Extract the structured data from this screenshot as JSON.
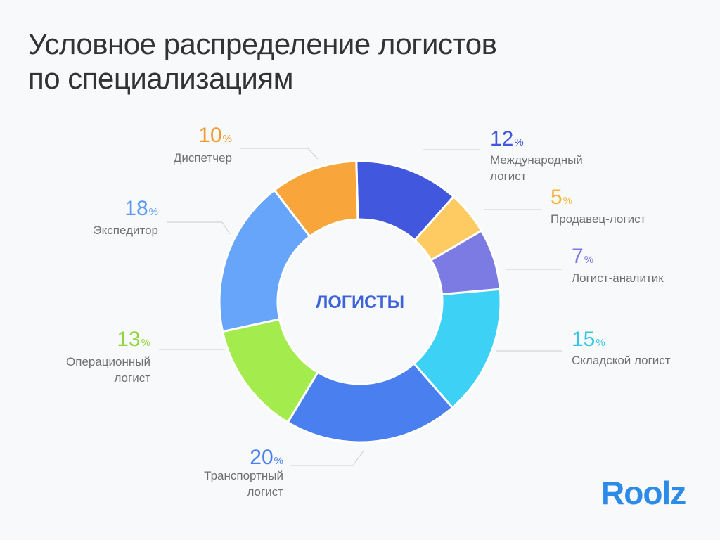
{
  "title": {
    "line1": "Условное распределение логистов",
    "line2": "по специализациям"
  },
  "logo": {
    "text": "Roolz"
  },
  "chart_data": {
    "type": "pie",
    "variant": "donut",
    "title": "Условное распределение логистов по специализациям",
    "center_label": "ЛОГИСТЫ",
    "unit": "%",
    "slices": [
      {
        "key": "international",
        "label": [
          "Международный",
          "логист"
        ],
        "value": 12,
        "color": "#4057de",
        "text_color": "#4057de",
        "side": "right"
      },
      {
        "key": "seller",
        "label": [
          "Продавец-логист"
        ],
        "value": 5,
        "color": "#fecb62",
        "text_color": "#f5b537",
        "side": "right"
      },
      {
        "key": "analyst",
        "label": [
          "Логист-аналитик"
        ],
        "value": 7,
        "color": "#7b7be3",
        "text_color": "#7b7be3",
        "side": "right"
      },
      {
        "key": "warehouse",
        "label": [
          "Складской логист"
        ],
        "value": 15,
        "color": "#3cd1f5",
        "text_color": "#33c6ea",
        "side": "right"
      },
      {
        "key": "transport",
        "label": [
          "Транспортный",
          "логист"
        ],
        "value": 20,
        "color": "#4a7ff0",
        "text_color": "#4a7ff0",
        "side": "left"
      },
      {
        "key": "operations",
        "label": [
          "Операционный",
          "логист"
        ],
        "value": 13,
        "color": "#a4ec4e",
        "text_color": "#8fd63a",
        "side": "left"
      },
      {
        "key": "forwarder",
        "label": [
          "Экспедитор"
        ],
        "value": 18,
        "color": "#66a5fa",
        "text_color": "#5b9bf5",
        "side": "left"
      },
      {
        "key": "dispatcher",
        "label": [
          "Диспетчер"
        ],
        "value": 10,
        "color": "#f8a63b",
        "text_color": "#f29a2e",
        "side": "left"
      }
    ]
  }
}
